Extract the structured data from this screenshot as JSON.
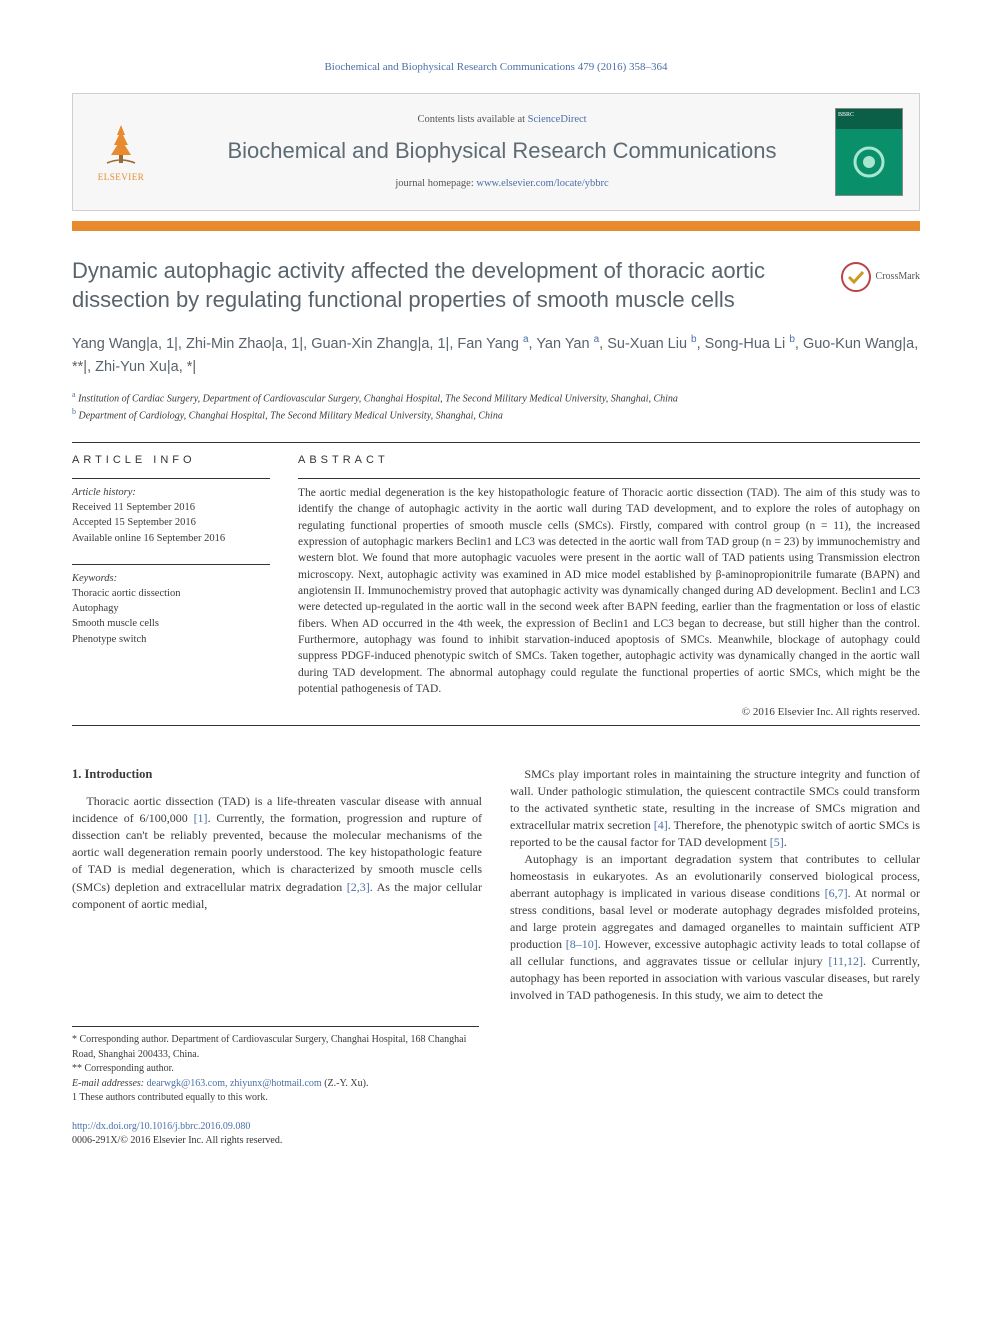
{
  "header": {
    "citation": "Biochemical and Biophysical Research Communications 479 (2016) 358–364",
    "contents_prefix": "Contents lists available at ",
    "contents_link": "ScienceDirect",
    "journal_name": "Biochemical and Biophysical Research Communications",
    "homepage_prefix": "journal homepage: ",
    "homepage_url": "www.elsevier.com/locate/ybbrc",
    "publisher_label": "ELSEVIER",
    "cover_label": "BBRC",
    "colors": {
      "link": "#4b6fa8",
      "accent": "#e78b2e",
      "cover": "#0a8f6b",
      "title": "#59636b"
    }
  },
  "crossmark_label": "CrossMark",
  "title": "Dynamic autophagic activity affected the development of thoracic aortic dissection by regulating functional properties of smooth muscle cells",
  "authors_html": "Yang Wang|a, 1|, Zhi-Min Zhao|a, 1|, Guan-Xin Zhang|a, 1|, Fan Yang|a|, Yan Yan|a|, Su-Xuan Liu|b|, Song-Hua Li|b|, Guo-Kun Wang|a, **|, Zhi-Yun Xu|a, *|",
  "affiliations": [
    {
      "sup": "a",
      "text": "Institution of Cardiac Surgery, Department of Cardiovascular Surgery, Changhai Hospital, The Second Military Medical University, Shanghai, China"
    },
    {
      "sup": "b",
      "text": "Department of Cardiology, Changhai Hospital, The Second Military Medical University, Shanghai, China"
    }
  ],
  "info": {
    "heading": "ARTICLE INFO",
    "history_label": "Article history:",
    "history": [
      "Received 11 September 2016",
      "Accepted 15 September 2016",
      "Available online 16 September 2016"
    ],
    "keywords_label": "Keywords:",
    "keywords": [
      "Thoracic aortic dissection",
      "Autophagy",
      "Smooth muscle cells",
      "Phenotype switch"
    ]
  },
  "abstract": {
    "heading": "ABSTRACT",
    "text": "The aortic medial degeneration is the key histopathologic feature of Thoracic aortic dissection (TAD). The aim of this study was to identify the change of autophagic activity in the aortic wall during TAD development, and to explore the roles of autophagy on regulating functional properties of smooth muscle cells (SMCs). Firstly, compared with control group (n = 11), the increased expression of autophagic markers Beclin1 and LC3 was detected in the aortic wall from TAD group (n = 23) by immunochemistry and western blot. We found that more autophagic vacuoles were present in the aortic wall of TAD patients using Transmission electron microscopy. Next, autophagic activity was examined in AD mice model established by β-aminopropionitrile fumarate (BAPN) and angiotensin II. Immunochemistry proved that autophagic activity was dynamically changed during AD development. Beclin1 and LC3 were detected up-regulated in the aortic wall in the second week after BAPN feeding, earlier than the fragmentation or loss of elastic fibers. When AD occurred in the 4th week, the expression of Beclin1 and LC3 began to decrease, but still higher than the control. Furthermore, autophagy was found to inhibit starvation-induced apoptosis of SMCs. Meanwhile, blockage of autophagy could suppress PDGF-induced phenotypic switch of SMCs. Taken together, autophagic activity was dynamically changed in the aortic wall during TAD development. The abnormal autophagy could regulate the functional properties of aortic SMCs, which might be the potential pathogenesis of TAD.",
    "copyright": "© 2016 Elsevier Inc. All rights reserved."
  },
  "body": {
    "section_heading": "1. Introduction",
    "left_para": "Thoracic aortic dissection (TAD) is a life-threaten vascular disease with annual incidence of 6/100,000 [1]. Currently, the formation, progression and rupture of dissection can't be reliably prevented, because the molecular mechanisms of the aortic wall degeneration remain poorly understood. The key histopathologic feature of TAD is medial degeneration, which is characterized by smooth muscle cells (SMCs) depletion and extracellular matrix degradation [2,3]. As the major cellular component of aortic medial,",
    "right_para_1": "SMCs play important roles in maintaining the structure integrity and function of wall. Under pathologic stimulation, the quiescent contractile SMCs could transform to the activated synthetic state, resulting in the increase of SMCs migration and extracellular matrix secretion [4]. Therefore, the phenotypic switch of aortic SMCs is reported to be the causal factor for TAD development [5].",
    "right_para_2": "Autophagy is an important degradation system that contributes to cellular homeostasis in eukaryotes. As an evolutionarily conserved biological process, aberrant autophagy is implicated in various disease conditions [6,7]. At normal or stress conditions, basal level or moderate autophagy degrades misfolded proteins, and large protein aggregates and damaged organelles to maintain sufficient ATP production [8–10]. However, excessive autophagic activity leads to total collapse of all cellular functions, and aggravates tissue or cellular injury [11,12]. Currently, autophagy has been reported in association with various vascular diseases, but rarely involved in TAD pathogenesis. In this study, we aim to detect the",
    "cite_tokens": [
      "[1]",
      "[2,3]",
      "[4]",
      "[5]",
      "[6,7]",
      "[8–10]",
      "[11,12]"
    ]
  },
  "footnotes": {
    "corr1": "* Corresponding author. Department of Cardiovascular Surgery, Changhai Hospital, 168 Changhai Road, Shanghai 200433, China.",
    "corr2": "** Corresponding author.",
    "email_label": "E-mail addresses: ",
    "emails": "dearwgk@163.com, zhiyunx@hotmail.com",
    "email_tail": " (Z.-Y. Xu).",
    "equal": "1 These authors contributed equally to this work."
  },
  "footer": {
    "doi": "http://dx.doi.org/10.1016/j.bbrc.2016.09.080",
    "issn_line": "0006-291X/© 2016 Elsevier Inc. All rights reserved."
  }
}
